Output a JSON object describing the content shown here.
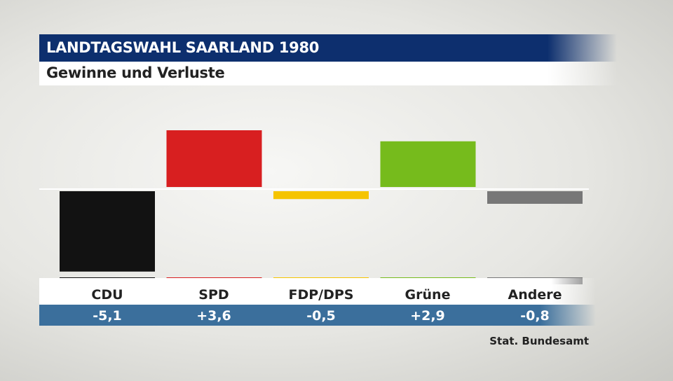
{
  "header": {
    "title": "LANDTAGSWAHL SAARLAND 1980",
    "subtitle": "Gewinne und Verluste"
  },
  "source": "Stat. Bundesamt",
  "chart_data": {
    "type": "bar",
    "categories": [
      "CDU",
      "SPD",
      "FDP/DPS",
      "Grüne",
      "Andere"
    ],
    "values": [
      -5.1,
      3.6,
      -0.5,
      2.9,
      -0.8
    ],
    "value_labels": [
      "-5,1",
      "+3,6",
      "-0,5",
      "+2,9",
      "-0,8"
    ],
    "colors": [
      "#121212",
      "#d81f20",
      "#f5c400",
      "#76bb1c",
      "#777777"
    ],
    "baseline": 0
  }
}
